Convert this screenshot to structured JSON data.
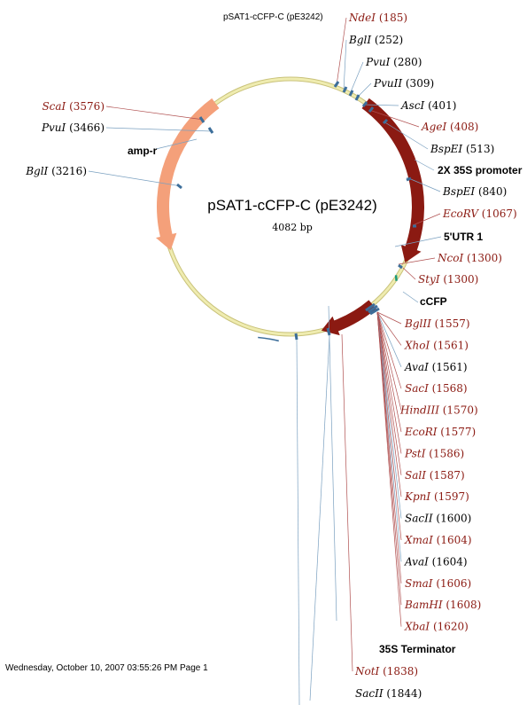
{
  "header": {
    "title": "pSAT1-cCFP-C (pE3242)"
  },
  "plasmid": {
    "name": "pSAT1-cCFP-C (pE3242)",
    "size": "4082 bp"
  },
  "footer": {
    "timestamp": "Wednesday, October 10, 2007 03:55:26 PM Page 1"
  },
  "colors": {
    "backbone": "#efecb0",
    "backbone_edge": "#c9c27a",
    "feature_dark": "#8b1a12",
    "feature_salmon": "#f4a07a",
    "feature_teal": "#1a9a7a",
    "site_tick": "#3c6e9a",
    "unique_cutter": "#8b1a12",
    "label_black": "#000000"
  },
  "features": [
    {
      "label": "amp-r",
      "color": "feature_salmon"
    },
    {
      "label": "2X 35S promoter",
      "color": "feature_dark"
    },
    {
      "label": "5'UTR 1",
      "color": "feature_teal"
    },
    {
      "label": "cCFP",
      "color": "feature_dark"
    },
    {
      "label": "35S Terminator",
      "color": "site_tick"
    }
  ],
  "sites": [
    {
      "name": "NdeI",
      "pos": "(185)",
      "color": "red"
    },
    {
      "name": "BglI",
      "pos": "(252)",
      "color": "black"
    },
    {
      "name": "PvuI",
      "pos": "(280)",
      "color": "black"
    },
    {
      "name": "PvuII",
      "pos": "(309)",
      "color": "black"
    },
    {
      "name": "AscI",
      "pos": "(401)",
      "color": "black"
    },
    {
      "name": "AgeI",
      "pos": "(408)",
      "color": "red"
    },
    {
      "name": "BspEI",
      "pos": "(513)",
      "color": "black"
    },
    {
      "name": "BspEI",
      "pos": "(840)",
      "color": "black"
    },
    {
      "name": "EcoRV",
      "pos": "(1067)",
      "color": "red"
    },
    {
      "name": "NcoI",
      "pos": "(1300)",
      "color": "red"
    },
    {
      "name": "StyI",
      "pos": "(1300)",
      "color": "red"
    },
    {
      "name": "BglII",
      "pos": "(1557)",
      "color": "red"
    },
    {
      "name": "XhoI",
      "pos": "(1561)",
      "color": "red"
    },
    {
      "name": "AvaI",
      "pos": "(1561)",
      "color": "black"
    },
    {
      "name": "SacI",
      "pos": "(1568)",
      "color": "red"
    },
    {
      "name": "HindIII",
      "pos": "(1570)",
      "color": "red"
    },
    {
      "name": "EcoRI",
      "pos": "(1577)",
      "color": "red"
    },
    {
      "name": "PstI",
      "pos": "(1586)",
      "color": "red"
    },
    {
      "name": "SalI",
      "pos": "(1587)",
      "color": "red"
    },
    {
      "name": "KpnI",
      "pos": "(1597)",
      "color": "red"
    },
    {
      "name": "SacII",
      "pos": "(1600)",
      "color": "black"
    },
    {
      "name": "XmaI",
      "pos": "(1604)",
      "color": "red"
    },
    {
      "name": "AvaI",
      "pos": "(1604)",
      "color": "black"
    },
    {
      "name": "SmaI",
      "pos": "(1606)",
      "color": "red"
    },
    {
      "name": "BamHI",
      "pos": "(1608)",
      "color": "red"
    },
    {
      "name": "XbaI",
      "pos": "(1620)",
      "color": "red"
    },
    {
      "name": "NotI",
      "pos": "(1838)",
      "color": "red"
    },
    {
      "name": "SacII",
      "pos": "(1844)",
      "color": "black"
    },
    {
      "name": "ScaI",
      "pos": "(3576)",
      "color": "red"
    },
    {
      "name": "PvuI",
      "pos": "(3466)",
      "color": "black"
    },
    {
      "name": "BglI",
      "pos": "(3216)",
      "color": "black"
    }
  ]
}
